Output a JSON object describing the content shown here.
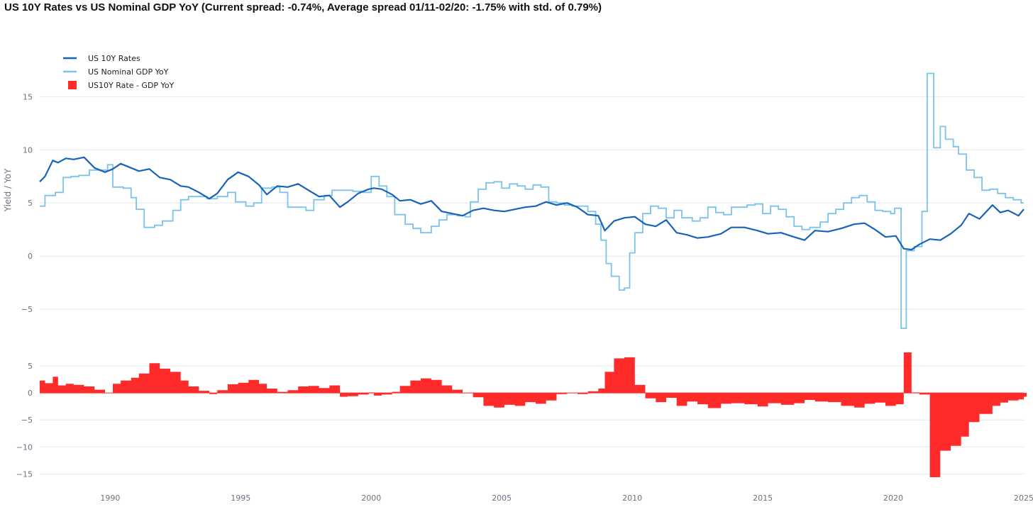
{
  "chart_data": {
    "type": "line",
    "title": "US 10Y Rates vs US Nominal GDP YoY (Current spread: -0.74%, Average spread 01/11-02/20: -1.75% with std. of 0.79%)",
    "ylabel": "Yield / YoY",
    "xlabel": "",
    "xlim": [
      1987.3,
      2025.0
    ],
    "x_ticks": [
      1990,
      1995,
      2000,
      2005,
      2010,
      2015,
      2020,
      2025
    ],
    "x_tick_labels": [
      "1990",
      "1995",
      "2000",
      "2005",
      "2010",
      "2015",
      "2020",
      "2025"
    ],
    "panels": [
      {
        "name": "rates",
        "ylim": [
          -7.0,
          18.5
        ],
        "y_ticks": [
          -5,
          0,
          5,
          10,
          15
        ],
        "y_tick_labels": [
          "−5",
          "0",
          "5",
          "10",
          "15"
        ]
      },
      {
        "name": "spread",
        "ylim": [
          -16.0,
          7.5
        ],
        "y_ticks": [
          -15,
          -10,
          -5,
          0,
          5
        ],
        "y_tick_labels": [
          "−15",
          "−10",
          "−5",
          "0",
          "5"
        ]
      }
    ],
    "legend": [
      "US 10Y Rates",
      "US Nominal GDP YoY",
      "US10Y Rate - GDP YoY"
    ],
    "legend_position": "top-left",
    "colors": {
      "rates": "#1763b8",
      "gdp": "#7cc3ea",
      "spread": "#ff2a2a",
      "grid": "#e5e7eb",
      "axis_text": "#6b7280"
    },
    "series": [
      {
        "name": "US 10Y Rates",
        "kind": "line",
        "x": [
          1987.3,
          1987.5,
          1987.8,
          1988.0,
          1988.3,
          1988.6,
          1989.0,
          1989.4,
          1989.8,
          1990.1,
          1990.4,
          1990.8,
          1991.1,
          1991.5,
          1991.9,
          1992.3,
          1992.7,
          1993.0,
          1993.4,
          1993.8,
          1994.1,
          1994.5,
          1994.9,
          1995.3,
          1995.7,
          1996.0,
          1996.4,
          1996.8,
          1997.2,
          1997.6,
          1998.0,
          1998.4,
          1998.8,
          1999.1,
          1999.5,
          1999.9,
          2000.1,
          2000.4,
          2000.8,
          2001.1,
          2001.5,
          2001.9,
          2002.3,
          2002.7,
          2003.1,
          2003.5,
          2003.9,
          2004.3,
          2004.7,
          2005.1,
          2005.5,
          2005.9,
          2006.3,
          2006.7,
          2007.1,
          2007.5,
          2007.9,
          2008.3,
          2008.7,
          2008.95,
          2009.3,
          2009.7,
          2010.1,
          2010.5,
          2010.9,
          2011.3,
          2011.7,
          2012.1,
          2012.5,
          2012.9,
          2013.4,
          2013.8,
          2014.3,
          2014.8,
          2015.2,
          2015.7,
          2016.2,
          2016.6,
          2017.0,
          2017.5,
          2018.0,
          2018.5,
          2018.9,
          2019.3,
          2019.7,
          2020.1,
          2020.4,
          2020.7,
          2021.0,
          2021.4,
          2021.8,
          2022.2,
          2022.6,
          2022.9,
          2023.3,
          2023.8,
          2024.1,
          2024.4,
          2024.8,
          2025.0
        ],
        "values": [
          7.0,
          7.5,
          9.0,
          8.8,
          9.2,
          9.1,
          9.3,
          8.3,
          7.9,
          8.2,
          8.7,
          8.3,
          8.0,
          8.2,
          7.4,
          7.2,
          6.6,
          6.5,
          6.0,
          5.4,
          5.9,
          7.2,
          7.9,
          7.5,
          6.7,
          5.8,
          6.6,
          6.5,
          6.8,
          6.2,
          5.6,
          5.7,
          4.6,
          5.1,
          5.9,
          6.3,
          6.4,
          6.3,
          5.8,
          5.2,
          5.3,
          4.9,
          5.2,
          4.2,
          4.0,
          3.8,
          4.3,
          4.5,
          4.3,
          4.2,
          4.4,
          4.6,
          4.7,
          5.1,
          4.8,
          5.0,
          4.6,
          3.9,
          3.8,
          2.4,
          3.3,
          3.6,
          3.7,
          3.0,
          2.8,
          3.4,
          2.2,
          2.0,
          1.7,
          1.8,
          2.1,
          2.7,
          2.7,
          2.4,
          2.1,
          2.2,
          1.8,
          1.5,
          2.4,
          2.3,
          2.6,
          3.0,
          3.1,
          2.5,
          1.8,
          1.9,
          0.7,
          0.6,
          1.1,
          1.6,
          1.5,
          2.1,
          2.9,
          4.0,
          3.5,
          4.8,
          4.1,
          4.3,
          3.8,
          4.4
        ]
      },
      {
        "name": "US Nominal GDP YoY",
        "kind": "step",
        "x": [
          1987.3,
          1987.5,
          1987.9,
          1988.2,
          1988.5,
          1988.8,
          1989.2,
          1989.6,
          1989.9,
          1990.1,
          1990.5,
          1990.8,
          1991.0,
          1991.3,
          1991.7,
          1992.0,
          1992.4,
          1992.7,
          1993.0,
          1993.4,
          1993.7,
          1994.1,
          1994.5,
          1994.8,
          1995.2,
          1995.5,
          1995.8,
          1996.2,
          1996.5,
          1996.8,
          1997.2,
          1997.5,
          1997.8,
          1998.2,
          1998.5,
          1998.9,
          1999.3,
          1999.7,
          2000.0,
          2000.3,
          2000.6,
          2000.9,
          2001.3,
          2001.6,
          2001.9,
          2002.3,
          2002.6,
          2002.9,
          2003.3,
          2003.6,
          2003.8,
          2004.1,
          2004.4,
          2004.7,
          2005.0,
          2005.3,
          2005.6,
          2005.9,
          2006.2,
          2006.5,
          2006.8,
          2007.1,
          2007.4,
          2007.7,
          2008.0,
          2008.3,
          2008.6,
          2008.8,
          2009.0,
          2009.2,
          2009.5,
          2009.7,
          2009.9,
          2010.1,
          2010.4,
          2010.7,
          2011.0,
          2011.3,
          2011.6,
          2011.9,
          2012.3,
          2012.6,
          2012.9,
          2013.2,
          2013.5,
          2013.8,
          2014.1,
          2014.4,
          2014.7,
          2015.0,
          2015.3,
          2015.6,
          2015.9,
          2016.2,
          2016.5,
          2016.8,
          2017.2,
          2017.5,
          2017.8,
          2018.1,
          2018.4,
          2018.7,
          2019.0,
          2019.3,
          2019.6,
          2019.9,
          2020.05,
          2020.3,
          2020.5,
          2020.8,
          2021.1,
          2021.3,
          2021.55,
          2021.8,
          2022.0,
          2022.3,
          2022.5,
          2022.8,
          2023.1,
          2023.4,
          2023.7,
          2024.0,
          2024.3,
          2024.6,
          2024.9
        ],
        "values": [
          4.7,
          5.7,
          6.0,
          7.4,
          7.5,
          7.6,
          8.1,
          8.1,
          8.6,
          6.5,
          6.4,
          5.5,
          4.4,
          2.7,
          2.9,
          3.3,
          4.3,
          5.3,
          5.6,
          5.6,
          5.4,
          5.6,
          6.0,
          5.1,
          4.7,
          5.0,
          6.4,
          6.5,
          6.0,
          4.6,
          4.6,
          4.3,
          5.3,
          5.7,
          6.2,
          6.2,
          6.1,
          6.0,
          7.5,
          6.6,
          5.6,
          3.9,
          3.0,
          2.6,
          2.2,
          2.8,
          3.4,
          3.9,
          3.8,
          3.7,
          5.1,
          6.3,
          6.9,
          7.0,
          6.4,
          6.8,
          6.6,
          6.3,
          6.7,
          6.5,
          5.1,
          5.0,
          4.8,
          4.7,
          4.7,
          4.2,
          3.0,
          1.5,
          -0.7,
          -1.9,
          -3.2,
          -3.0,
          0.3,
          2.2,
          4.0,
          4.7,
          4.5,
          3.6,
          4.3,
          3.6,
          3.3,
          3.6,
          4.6,
          4.1,
          3.9,
          4.6,
          4.6,
          4.8,
          4.9,
          4.0,
          4.7,
          4.4,
          3.7,
          2.8,
          2.5,
          2.7,
          3.2,
          4.0,
          4.4,
          5.0,
          5.5,
          5.7,
          5.1,
          4.3,
          4.2,
          4.0,
          4.5,
          -6.8,
          0.5,
          0.9,
          4.2,
          17.2,
          10.2,
          12.2,
          11.0,
          10.3,
          9.6,
          8.1,
          7.4,
          6.2,
          6.3,
          5.9,
          5.5,
          5.3,
          5.0
        ]
      },
      {
        "name": "US10Y Rate - GDP YoY",
        "kind": "area",
        "x": [
          1987.3,
          1987.5,
          1987.8,
          1988.0,
          1988.3,
          1988.6,
          1989.0,
          1989.4,
          1989.8,
          1990.1,
          1990.4,
          1990.8,
          1991.1,
          1991.5,
          1991.9,
          1992.3,
          1992.7,
          1993.0,
          1993.4,
          1993.8,
          1994.1,
          1994.5,
          1994.9,
          1995.3,
          1995.7,
          1996.0,
          1996.4,
          1996.8,
          1997.2,
          1997.6,
          1998.0,
          1998.4,
          1998.8,
          1999.1,
          1999.5,
          1999.9,
          2000.1,
          2000.4,
          2000.8,
          2001.1,
          2001.5,
          2001.9,
          2002.3,
          2002.7,
          2003.1,
          2003.5,
          2003.9,
          2004.3,
          2004.7,
          2005.1,
          2005.5,
          2005.9,
          2006.3,
          2006.7,
          2007.1,
          2007.5,
          2007.9,
          2008.3,
          2008.7,
          2008.95,
          2009.3,
          2009.7,
          2010.1,
          2010.5,
          2010.9,
          2011.3,
          2011.7,
          2012.1,
          2012.5,
          2012.9,
          2013.4,
          2013.8,
          2014.3,
          2014.8,
          2015.2,
          2015.7,
          2016.2,
          2016.6,
          2017.0,
          2017.5,
          2018.0,
          2018.5,
          2018.9,
          2019.3,
          2019.7,
          2020.1,
          2020.4,
          2020.7,
          2021.0,
          2021.4,
          2021.8,
          2022.2,
          2022.6,
          2022.9,
          2023.3,
          2023.8,
          2024.1,
          2024.4,
          2024.8,
          2025.0
        ],
        "values": [
          2.3,
          1.8,
          3.0,
          1.4,
          1.7,
          1.5,
          1.2,
          0.6,
          0.0,
          1.7,
          2.3,
          2.8,
          3.6,
          5.5,
          4.5,
          3.9,
          2.3,
          1.2,
          0.4,
          -0.2,
          0.5,
          1.6,
          1.9,
          2.4,
          1.7,
          0.8,
          0.2,
          0.5,
          1.2,
          1.3,
          0.9,
          1.4,
          -0.7,
          -0.6,
          -0.3,
          0.1,
          -0.5,
          -0.3,
          0.2,
          1.3,
          2.3,
          2.7,
          2.4,
          1.4,
          0.6,
          0.0,
          -0.8,
          -2.4,
          -2.7,
          -2.2,
          -2.4,
          -1.7,
          -2.0,
          -1.4,
          -0.2,
          0.0,
          -0.2,
          0.3,
          0.8,
          3.9,
          6.4,
          6.6,
          1.5,
          -1.0,
          -1.7,
          -0.9,
          -2.4,
          -1.6,
          -2.1,
          -2.8,
          -2.0,
          -1.9,
          -2.1,
          -2.5,
          -1.9,
          -2.2,
          -1.9,
          -1.3,
          -1.6,
          -1.7,
          -2.4,
          -2.7,
          -2.0,
          -1.8,
          -2.4,
          -2.1,
          7.5,
          0.1,
          -0.3,
          -15.6,
          -10.7,
          -9.8,
          -8.1,
          -5.4,
          -3.9,
          -2.4,
          -1.8,
          -1.4,
          -1.2,
          -0.7
        ]
      }
    ]
  }
}
